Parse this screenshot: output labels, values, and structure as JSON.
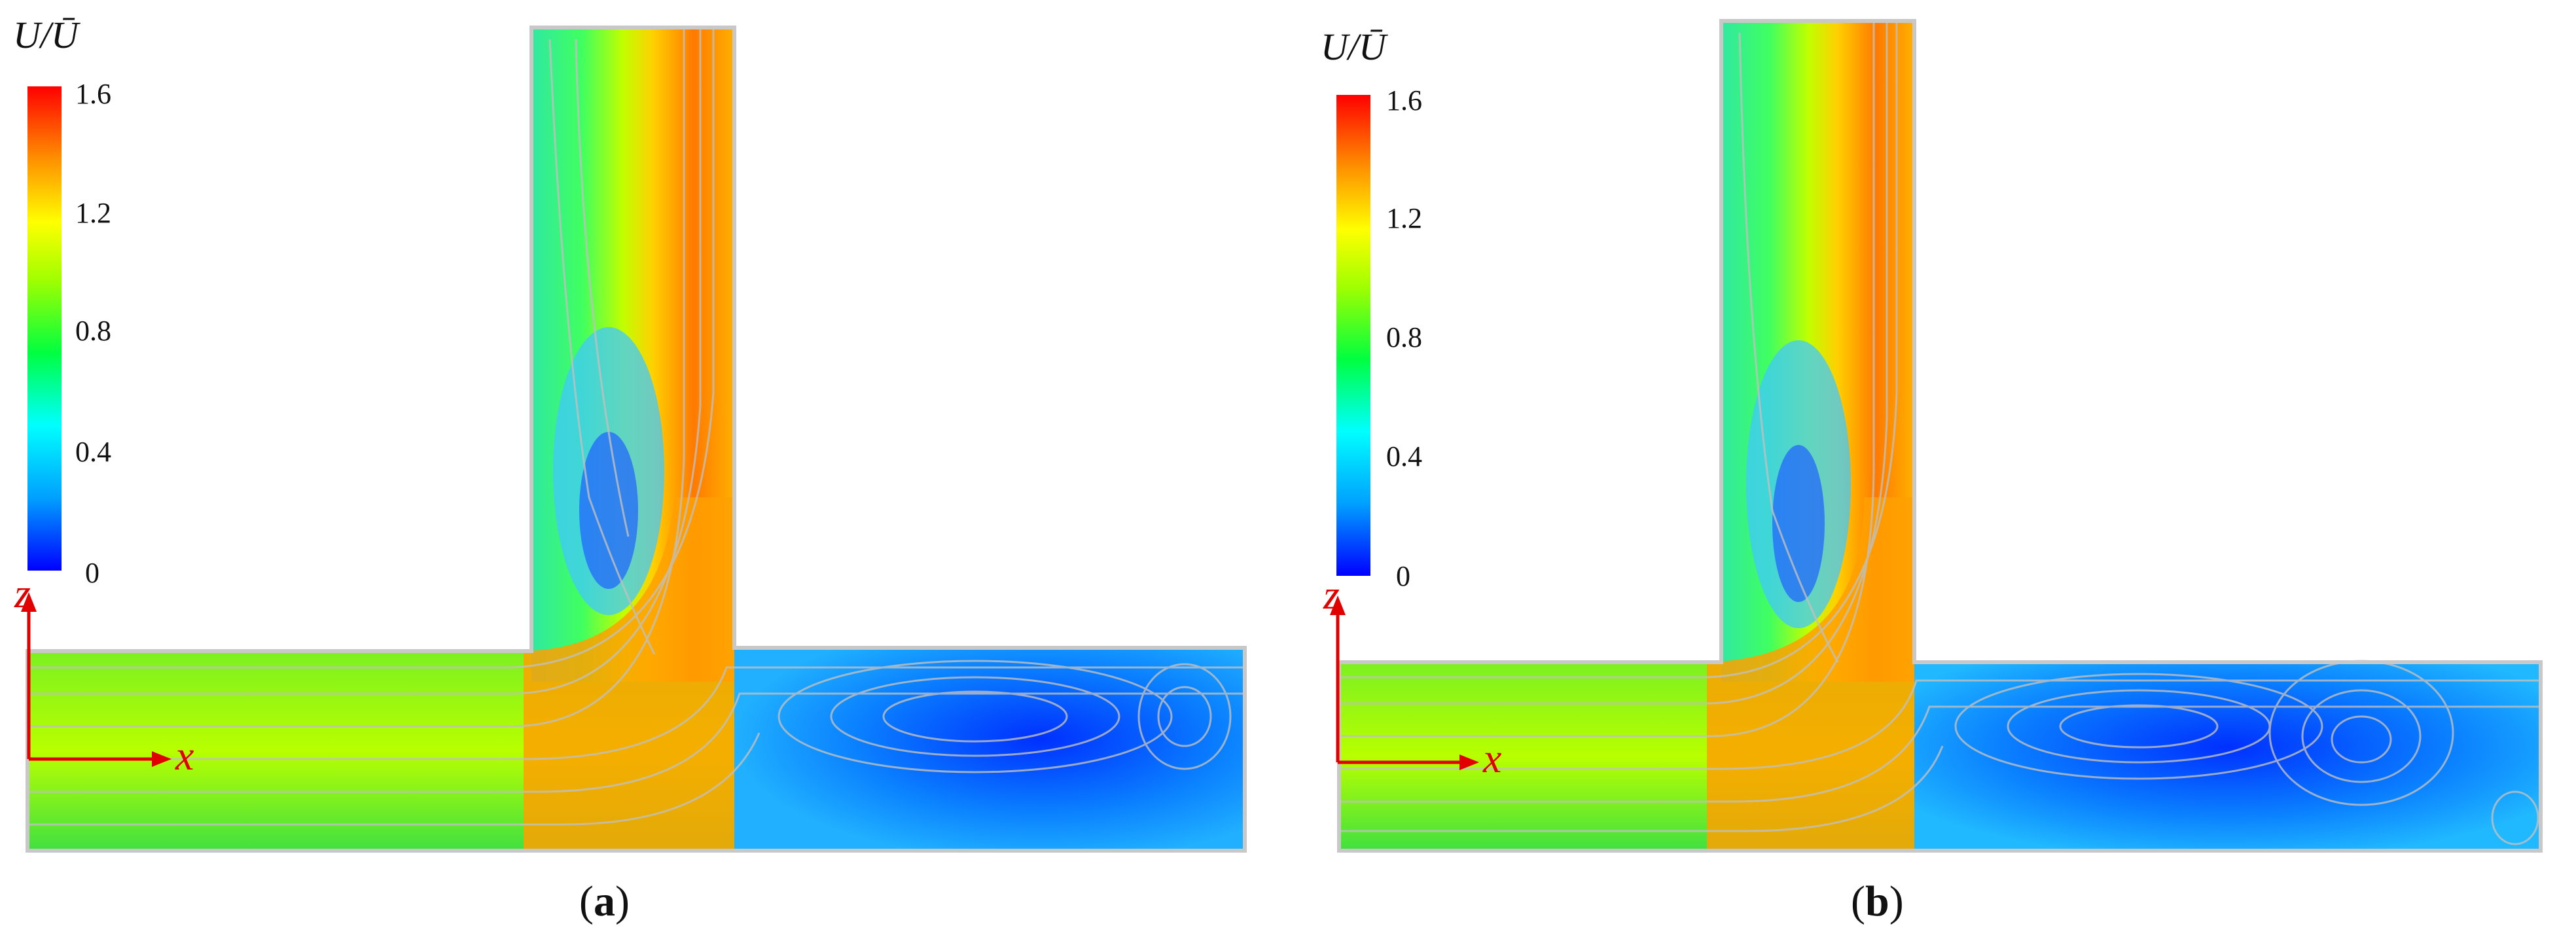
{
  "panels": [
    {
      "caption": {
        "open": "(",
        "letter": "a",
        "close": ")"
      },
      "colorbar": {
        "title": "U/Ū",
        "ticks": [
          "1.6",
          "1.2",
          "0.8",
          "0.4",
          "0"
        ]
      },
      "axes": {
        "x": "x",
        "z": "z"
      }
    },
    {
      "caption": {
        "open": "(",
        "letter": "b",
        "close": ")"
      },
      "colorbar": {
        "title": "U/Ū",
        "ticks": [
          "1.6",
          "1.2",
          "0.8",
          "0.4",
          "0"
        ]
      },
      "axes": {
        "x": "x",
        "z": "z"
      }
    }
  ],
  "colormap": [
    "#0000ff",
    "#00b0ff",
    "#00ffff",
    "#00ff60",
    "#80ff00",
    "#ffff00",
    "#ffb000",
    "#ff6000",
    "#ff0000"
  ],
  "colors": {
    "wall": "#c8c8c8",
    "streamline": "#b8b8b8",
    "axis": "#e00000",
    "recirculation": "#1a1acc"
  }
}
